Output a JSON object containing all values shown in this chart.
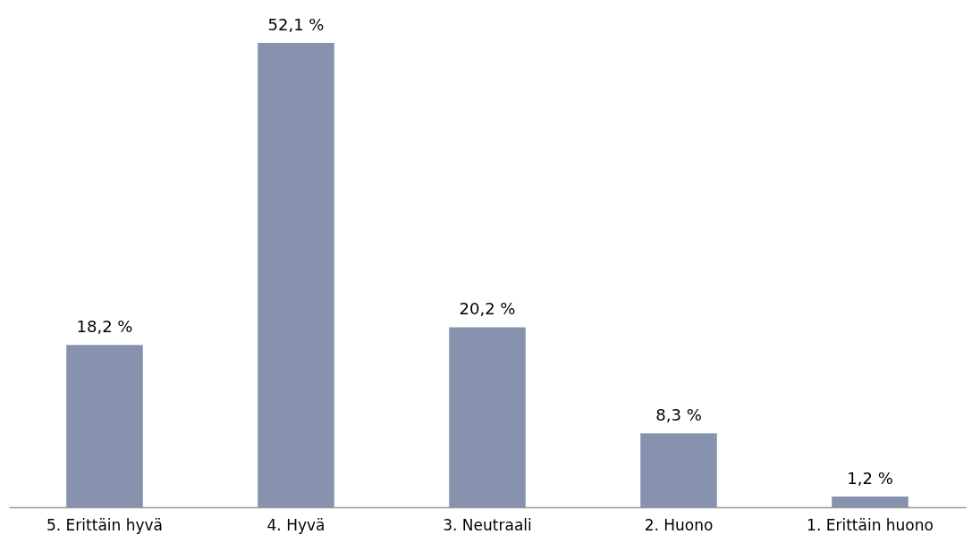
{
  "chart_data": {
    "type": "bar",
    "categories": [
      "5. Erittäin hyvä",
      "4. Hyvä",
      "3. Neutraali",
      "2. Huono",
      "1. Erittäin huono"
    ],
    "values": [
      18.2,
      52.1,
      20.2,
      8.3,
      1.2
    ],
    "value_labels": [
      "18,2 %",
      "52,1 %",
      "20,2 %",
      "8,3 %",
      "1,2 %"
    ],
    "color": "#8793ae",
    "grid": false
  }
}
